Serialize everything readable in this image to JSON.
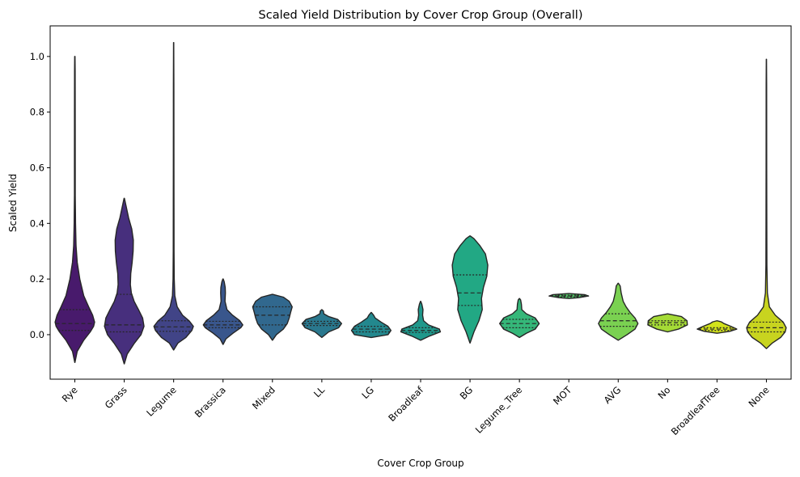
{
  "chart_data": {
    "type": "violin",
    "title": "Scaled Yield Distribution by Cover Crop Group (Overall)",
    "xlabel": "Cover Crop Group",
    "ylabel": "Scaled Yield",
    "ylim": [
      -0.16,
      1.11
    ],
    "yticks": [
      "0.0",
      "0.2",
      "0.4",
      "0.6",
      "0.8",
      "1.0"
    ],
    "grid": false,
    "palette": "viridis",
    "inner": "quartile",
    "categories": [
      "Rye",
      "Grass",
      "Legume",
      "Brassica",
      "Mixed",
      "LL",
      "LG",
      "Broadleaf",
      "BG",
      "Legume_Tree",
      "MOT",
      "AVG",
      "No",
      "BroadleafTree",
      "None"
    ],
    "colors": [
      "#481a6c",
      "#472f7d",
      "#414487",
      "#39568c",
      "#31688e",
      "#2a788e",
      "#23888e",
      "#1f988b",
      "#22a884",
      "#35b779",
      "#54c568",
      "#7ad151",
      "#a5db36",
      "#d2e21b",
      "#c8d41f"
    ],
    "violins": [
      {
        "name": "Rye",
        "min": -0.1,
        "max": 1.0,
        "q1": 0.015,
        "median": 0.04,
        "q3": 0.09,
        "profile": [
          [
            -0.1,
            0.003
          ],
          [
            -0.06,
            0.12
          ],
          [
            -0.02,
            0.45
          ],
          [
            0.01,
            0.78
          ],
          [
            0.03,
            0.95
          ],
          [
            0.045,
            1.0
          ],
          [
            0.07,
            0.9
          ],
          [
            0.1,
            0.7
          ],
          [
            0.14,
            0.45
          ],
          [
            0.2,
            0.25
          ],
          [
            0.26,
            0.12
          ],
          [
            0.32,
            0.06
          ],
          [
            0.4,
            0.035
          ],
          [
            0.44,
            0.03
          ],
          [
            0.5,
            0.02
          ],
          [
            0.6,
            0.02
          ],
          [
            0.8,
            0.018
          ],
          [
            0.95,
            0.015
          ],
          [
            1.0,
            0.008
          ]
        ]
      },
      {
        "name": "Grass",
        "min": -0.105,
        "max": 0.49,
        "q1": 0.01,
        "median": 0.035,
        "q3": 0.145,
        "profile": [
          [
            -0.105,
            0.003
          ],
          [
            -0.07,
            0.15
          ],
          [
            -0.03,
            0.52
          ],
          [
            0.0,
            0.85
          ],
          [
            0.03,
            1.0
          ],
          [
            0.06,
            0.93
          ],
          [
            0.09,
            0.72
          ],
          [
            0.12,
            0.5
          ],
          [
            0.15,
            0.36
          ],
          [
            0.18,
            0.31
          ],
          [
            0.22,
            0.33
          ],
          [
            0.26,
            0.4
          ],
          [
            0.3,
            0.45
          ],
          [
            0.34,
            0.46
          ],
          [
            0.38,
            0.38
          ],
          [
            0.42,
            0.22
          ],
          [
            0.46,
            0.1
          ],
          [
            0.49,
            0.01
          ]
        ]
      },
      {
        "name": "Legume",
        "min": -0.055,
        "max": 1.05,
        "q1": 0.012,
        "median": 0.028,
        "q3": 0.05,
        "profile": [
          [
            -0.055,
            0.003
          ],
          [
            -0.03,
            0.22
          ],
          [
            -0.01,
            0.62
          ],
          [
            0.015,
            0.92
          ],
          [
            0.03,
            1.0
          ],
          [
            0.05,
            0.78
          ],
          [
            0.07,
            0.45
          ],
          [
            0.1,
            0.18
          ],
          [
            0.14,
            0.06
          ],
          [
            0.2,
            0.03
          ],
          [
            0.3,
            0.02
          ],
          [
            0.6,
            0.015
          ],
          [
            0.9,
            0.012
          ],
          [
            1.05,
            0.005
          ]
        ]
      },
      {
        "name": "Brassica",
        "min": -0.035,
        "max": 0.2,
        "q1": 0.025,
        "median": 0.035,
        "q3": 0.048,
        "profile": [
          [
            -0.035,
            0.003
          ],
          [
            -0.015,
            0.15
          ],
          [
            0.005,
            0.5
          ],
          [
            0.025,
            0.9
          ],
          [
            0.035,
            1.0
          ],
          [
            0.05,
            0.85
          ],
          [
            0.07,
            0.48
          ],
          [
            0.09,
            0.2
          ],
          [
            0.12,
            0.1
          ],
          [
            0.15,
            0.12
          ],
          [
            0.17,
            0.11
          ],
          [
            0.19,
            0.06
          ],
          [
            0.2,
            0.01
          ]
        ]
      },
      {
        "name": "Mixed",
        "min": -0.02,
        "max": 0.145,
        "q1": 0.035,
        "median": 0.07,
        "q3": 0.1,
        "profile": [
          [
            -0.02,
            0.003
          ],
          [
            0.0,
            0.2
          ],
          [
            0.02,
            0.55
          ],
          [
            0.04,
            0.75
          ],
          [
            0.06,
            0.85
          ],
          [
            0.08,
            0.92
          ],
          [
            0.1,
            1.0
          ],
          [
            0.12,
            0.85
          ],
          [
            0.135,
            0.55
          ],
          [
            0.145,
            0.01
          ]
        ]
      },
      {
        "name": "LL",
        "min": -0.01,
        "max": 0.09,
        "q1": 0.033,
        "median": 0.04,
        "q3": 0.048,
        "profile": [
          [
            -0.01,
            0.003
          ],
          [
            0.01,
            0.35
          ],
          [
            0.025,
            0.85
          ],
          [
            0.04,
            1.0
          ],
          [
            0.055,
            0.8
          ],
          [
            0.065,
            0.35
          ],
          [
            0.075,
            0.1
          ],
          [
            0.085,
            0.08
          ],
          [
            0.09,
            0.005
          ]
        ]
      },
      {
        "name": "LG",
        "min": -0.01,
        "max": 0.08,
        "q1": 0.01,
        "median": 0.02,
        "q3": 0.03,
        "profile": [
          [
            -0.01,
            0.01
          ],
          [
            0.0,
            0.85
          ],
          [
            0.015,
            1.0
          ],
          [
            0.03,
            0.85
          ],
          [
            0.045,
            0.5
          ],
          [
            0.06,
            0.2
          ],
          [
            0.07,
            0.12
          ],
          [
            0.08,
            0.005
          ]
        ]
      },
      {
        "name": "Broadleaf",
        "min": -0.02,
        "max": 0.12,
        "q1": 0.008,
        "median": 0.015,
        "q3": 0.025,
        "profile": [
          [
            -0.02,
            0.003
          ],
          [
            -0.005,
            0.45
          ],
          [
            0.01,
            1.0
          ],
          [
            0.02,
            0.95
          ],
          [
            0.035,
            0.4
          ],
          [
            0.05,
            0.15
          ],
          [
            0.07,
            0.1
          ],
          [
            0.09,
            0.12
          ],
          [
            0.11,
            0.06
          ],
          [
            0.12,
            0.005
          ]
        ]
      },
      {
        "name": "BG",
        "min": -0.03,
        "max": 0.355,
        "q1": 0.105,
        "median": 0.15,
        "q3": 0.215,
        "profile": [
          [
            -0.03,
            0.003
          ],
          [
            0.01,
            0.2
          ],
          [
            0.05,
            0.45
          ],
          [
            0.09,
            0.62
          ],
          [
            0.13,
            0.58
          ],
          [
            0.17,
            0.68
          ],
          [
            0.21,
            0.85
          ],
          [
            0.25,
            0.9
          ],
          [
            0.29,
            0.78
          ],
          [
            0.32,
            0.5
          ],
          [
            0.345,
            0.2
          ],
          [
            0.355,
            0.01
          ]
        ]
      },
      {
        "name": "Legume_Tree",
        "min": -0.01,
        "max": 0.13,
        "q1": 0.025,
        "median": 0.04,
        "q3": 0.055,
        "profile": [
          [
            -0.01,
            0.003
          ],
          [
            0.005,
            0.35
          ],
          [
            0.02,
            0.8
          ],
          [
            0.04,
            1.0
          ],
          [
            0.06,
            0.8
          ],
          [
            0.075,
            0.35
          ],
          [
            0.09,
            0.12
          ],
          [
            0.11,
            0.1
          ],
          [
            0.125,
            0.06
          ],
          [
            0.13,
            0.005
          ]
        ]
      },
      {
        "name": "MOT",
        "min": 0.13,
        "max": 0.148,
        "q1": 0.136,
        "median": 0.139,
        "q3": 0.142,
        "profile": [
          [
            0.13,
            0.02
          ],
          [
            0.133,
            0.5
          ],
          [
            0.139,
            1.0
          ],
          [
            0.144,
            0.8
          ],
          [
            0.148,
            0.02
          ]
        ]
      },
      {
        "name": "AVG",
        "min": -0.02,
        "max": 0.185,
        "q1": 0.03,
        "median": 0.05,
        "q3": 0.075,
        "profile": [
          [
            -0.02,
            0.003
          ],
          [
            0.0,
            0.45
          ],
          [
            0.02,
            0.85
          ],
          [
            0.04,
            1.0
          ],
          [
            0.06,
            0.85
          ],
          [
            0.08,
            0.6
          ],
          [
            0.1,
            0.4
          ],
          [
            0.12,
            0.25
          ],
          [
            0.15,
            0.15
          ],
          [
            0.175,
            0.1
          ],
          [
            0.185,
            0.005
          ]
        ]
      },
      {
        "name": "No",
        "min": 0.01,
        "max": 0.075,
        "q1": 0.035,
        "median": 0.043,
        "q3": 0.05,
        "profile": [
          [
            0.01,
            0.003
          ],
          [
            0.02,
            0.55
          ],
          [
            0.035,
            1.0
          ],
          [
            0.05,
            0.98
          ],
          [
            0.065,
            0.7
          ],
          [
            0.075,
            0.005
          ]
        ]
      },
      {
        "name": "BroadleafTree",
        "min": 0.005,
        "max": 0.05,
        "q1": 0.015,
        "median": 0.02,
        "q3": 0.025,
        "profile": [
          [
            0.005,
            0.003
          ],
          [
            0.012,
            0.65
          ],
          [
            0.02,
            1.0
          ],
          [
            0.03,
            0.7
          ],
          [
            0.04,
            0.35
          ],
          [
            0.046,
            0.22
          ],
          [
            0.05,
            0.005
          ]
        ]
      },
      {
        "name": "None",
        "min": -0.05,
        "max": 0.99,
        "q1": 0.01,
        "median": 0.025,
        "q3": 0.045,
        "profile": [
          [
            -0.05,
            0.003
          ],
          [
            -0.03,
            0.3
          ],
          [
            -0.01,
            0.72
          ],
          [
            0.01,
            0.95
          ],
          [
            0.025,
            1.0
          ],
          [
            0.045,
            0.85
          ],
          [
            0.07,
            0.45
          ],
          [
            0.1,
            0.15
          ],
          [
            0.15,
            0.05
          ],
          [
            0.25,
            0.025
          ],
          [
            0.4,
            0.02
          ],
          [
            0.6,
            0.015
          ],
          [
            0.9,
            0.012
          ],
          [
            0.99,
            0.005
          ]
        ]
      }
    ]
  }
}
